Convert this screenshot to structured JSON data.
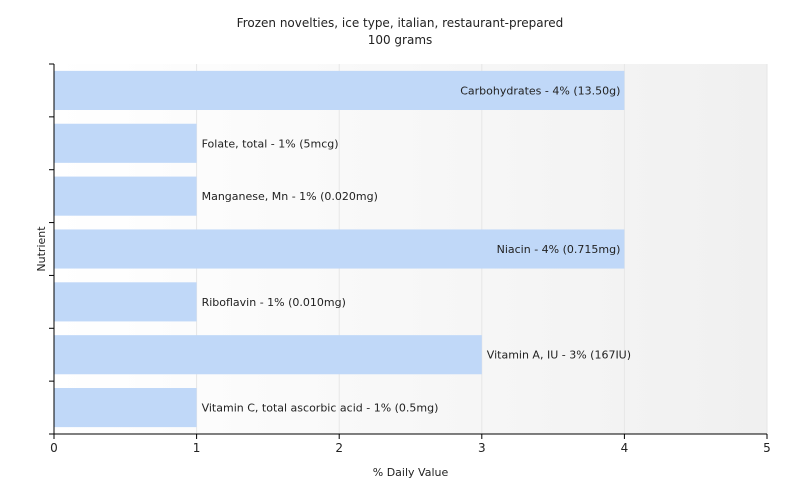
{
  "chart_data": {
    "type": "bar",
    "orientation": "horizontal",
    "title": "Frozen novelties, ice type, italian, restaurant-prepared",
    "subtitle": "100 grams",
    "xlabel": "% Daily Value",
    "ylabel": "Nutrient",
    "xlim": [
      0,
      5
    ],
    "xticks": [
      "0",
      "1",
      "2",
      "3",
      "4",
      "5"
    ],
    "grid": true,
    "categories": [
      "Carbohydrates",
      "Folate, total",
      "Manganese, Mn",
      "Niacin",
      "Riboflavin",
      "Vitamin A, IU",
      "Vitamin C, total ascorbic acid"
    ],
    "values": [
      4,
      1,
      1,
      4,
      1,
      3,
      1
    ],
    "data_labels": [
      "Carbohydrates - 4% (13.50g)",
      "Folate, total - 1% (5mcg)",
      "Manganese, Mn - 1% (0.020mg)",
      "Niacin - 4% (0.715mg)",
      "Riboflavin - 1% (0.010mg)",
      "Vitamin A, IU - 3% (167IU)",
      "Vitamin C, total ascorbic acid - 1% (0.5mg)"
    ],
    "colors": {
      "bar": "#c0d8f8",
      "grid": "#e6e6e6",
      "axis": "#000000",
      "plot_bg_light": "#ffffff",
      "plot_bg_dark": "#f0f0f0"
    }
  }
}
